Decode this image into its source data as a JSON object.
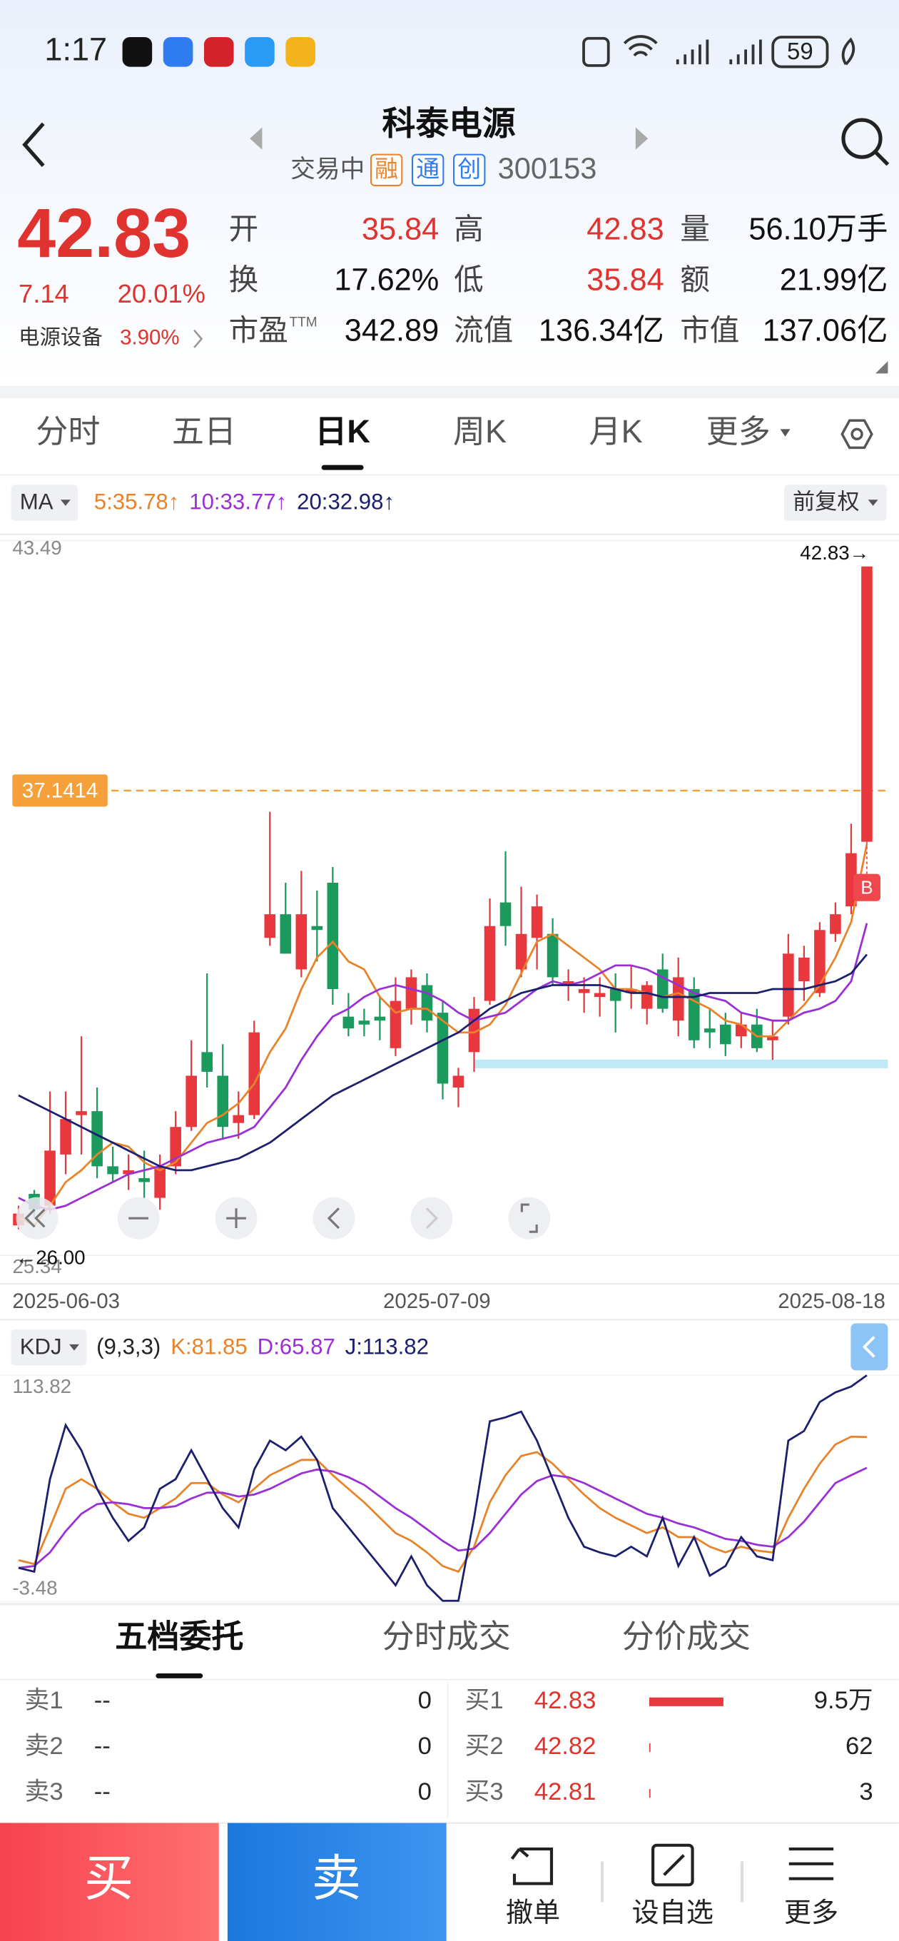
{
  "status_bar": {
    "time": "1:17",
    "battery": "59"
  },
  "header": {
    "title": "科泰电源",
    "status": "交易中",
    "badges": [
      "融",
      "通",
      "创"
    ],
    "code": "300153"
  },
  "quote": {
    "price": "42.83",
    "change": "7.14",
    "change_pct": "20.01%",
    "sector": "电源设备",
    "sector_pct": "3.90%",
    "fields": [
      {
        "label": "开",
        "value": "35.84",
        "color": "#e0332f"
      },
      {
        "label": "高",
        "value": "42.83",
        "color": "#e0332f"
      },
      {
        "label": "量",
        "value": "56.10万手",
        "color": "#111111"
      },
      {
        "label": "换",
        "value": "17.62%",
        "color": "#111111"
      },
      {
        "label": "低",
        "value": "35.84",
        "color": "#e0332f"
      },
      {
        "label": "额",
        "value": "21.99亿",
        "color": "#111111"
      },
      {
        "label": "市盈",
        "sup": "TTM",
        "value": "342.89",
        "color": "#111111"
      },
      {
        "label": "流值",
        "value": "136.34亿",
        "color": "#111111"
      },
      {
        "label": "市值",
        "value": "137.06亿",
        "color": "#111111"
      }
    ]
  },
  "tabs": [
    "分时",
    "五日",
    "日K",
    "周K",
    "月K",
    "更多"
  ],
  "active_tab": 2,
  "chart_data": [
    {
      "type": "candlestick",
      "indicator": "MA",
      "adjust": "前复权",
      "legend": [
        {
          "text": "5:35.78↑",
          "color": "#e8832a"
        },
        {
          "text": "10:33.77↑",
          "color": "#9b2fd6"
        },
        {
          "text": "20:32.98↑",
          "color": "#1b1f6e"
        }
      ],
      "categories": [
        "2025-06-03",
        null,
        null,
        null,
        null,
        null,
        null,
        null,
        null,
        null,
        null,
        null,
        null,
        null,
        null,
        null,
        null,
        null,
        null,
        null,
        null,
        null,
        null,
        null,
        null,
        null,
        "2025-07-09",
        null,
        null,
        null,
        null,
        null,
        null,
        null,
        null,
        null,
        null,
        null,
        null,
        null,
        null,
        null,
        null,
        null,
        null,
        null,
        null,
        null,
        null,
        null,
        null,
        null,
        null,
        null,
        "2025-08-18"
      ],
      "open": [
        26.1,
        26.9,
        26.6,
        27.9,
        28.9,
        29.0,
        27.6,
        27.4,
        27.3,
        26.8,
        27.6,
        28.6,
        30.5,
        29.9,
        28.7,
        28.9,
        33.4,
        34.0,
        32.6,
        33.7,
        34.8,
        31.4,
        31.3,
        31.4,
        30.6,
        31.6,
        32.2,
        31.5,
        29.6,
        30.5,
        31.8,
        34.3,
        32.6,
        33.4,
        33.5,
        32.2,
        32.0,
        31.9,
        32.1,
        32.0,
        31.6,
        32.6,
        31.3,
        32.1,
        31.1,
        31.2,
        30.9,
        31.2,
        30.8,
        31.4,
        32.3,
        32.0,
        33.5,
        34.2,
        35.84
      ],
      "high": [
        26.6,
        27.0,
        29.5,
        29.5,
        30.9,
        29.6,
        28.1,
        27.9,
        28.0,
        27.9,
        29.0,
        30.8,
        32.5,
        30.7,
        29.5,
        31.3,
        36.6,
        34.8,
        35.1,
        34.6,
        35.2,
        32.0,
        31.6,
        31.9,
        32.4,
        32.6,
        32.5,
        31.8,
        30.1,
        31.9,
        34.4,
        35.6,
        34.7,
        34.5,
        33.9,
        32.6,
        32.4,
        32.4,
        32.5,
        32.7,
        32.3,
        33.0,
        32.9,
        32.4,
        31.6,
        31.5,
        31.5,
        31.6,
        31.3,
        33.5,
        33.2,
        33.8,
        34.3,
        36.3,
        42.83
      ],
      "low": [
        26.0,
        26.3,
        26.4,
        27.4,
        27.9,
        27.3,
        27.2,
        27.0,
        26.8,
        26.5,
        27.4,
        28.5,
        29.6,
        28.3,
        28.3,
        28.8,
        33.2,
        33.0,
        32.4,
        32.8,
        31.7,
        30.9,
        30.9,
        30.8,
        30.4,
        31.2,
        31.0,
        29.3,
        29.1,
        30.0,
        31.7,
        33.2,
        32.4,
        32.6,
        32.2,
        31.8,
        31.5,
        31.4,
        31.0,
        31.6,
        31.2,
        31.5,
        30.9,
        30.6,
        30.6,
        30.4,
        30.6,
        30.5,
        30.3,
        31.2,
        31.8,
        31.9,
        33.3,
        34.0,
        35.84
      ],
      "close": [
        26.4,
        26.5,
        28.0,
        28.8,
        29.0,
        27.6,
        27.4,
        27.5,
        27.2,
        27.6,
        28.6,
        29.9,
        30.0,
        28.6,
        28.9,
        31.0,
        34.0,
        33.0,
        34.0,
        33.6,
        32.1,
        31.1,
        31.2,
        31.3,
        31.8,
        32.4,
        31.3,
        29.7,
        29.9,
        31.6,
        33.7,
        33.7,
        33.5,
        34.2,
        32.4,
        32.3,
        32.1,
        32.0,
        31.8,
        32.1,
        32.2,
        31.6,
        32.4,
        30.8,
        31.0,
        30.7,
        31.2,
        30.6,
        30.9,
        33.0,
        32.9,
        33.6,
        34.0,
        35.55,
        42.83
      ],
      "up_color": "#e8383d",
      "down_color": "#1a9a5c",
      "series": [
        {
          "color": "#e8832a",
          "values": [
            26.3,
            26.1,
            26.6,
            27.2,
            27.5,
            27.9,
            28.2,
            28.1,
            27.7,
            27.5,
            27.7,
            28.2,
            28.7,
            28.9,
            29.2,
            29.7,
            30.5,
            31.1,
            32.1,
            32.9,
            33.3,
            32.8,
            32.6,
            31.9,
            31.5,
            31.6,
            31.6,
            31.3,
            31.0,
            31.0,
            31.2,
            31.7,
            32.5,
            33.3,
            33.5,
            33.2,
            32.9,
            32.6,
            32.1,
            32.1,
            32.0,
            31.9,
            32.0,
            31.8,
            31.6,
            31.3,
            31.2,
            30.9,
            30.9,
            31.3,
            31.7,
            32.2,
            32.9,
            33.8,
            35.78
          ]
        },
        {
          "color": "#9b2fd6",
          "values": [
            26.8,
            26.6,
            26.5,
            26.6,
            26.8,
            27.0,
            27.2,
            27.4,
            27.5,
            27.6,
            27.8,
            28.0,
            28.2,
            28.3,
            28.4,
            28.6,
            29.1,
            29.6,
            30.3,
            30.9,
            31.4,
            31.6,
            31.9,
            32.1,
            32.2,
            32.1,
            32.0,
            31.8,
            31.5,
            31.3,
            31.4,
            31.5,
            31.8,
            32.1,
            32.3,
            32.2,
            32.3,
            32.5,
            32.7,
            32.7,
            32.6,
            32.4,
            32.2,
            32.0,
            31.9,
            31.8,
            31.5,
            31.4,
            31.3,
            31.3,
            31.5,
            31.6,
            31.8,
            32.3,
            33.77
          ]
        },
        {
          "color": "#1b1f6e",
          "values": [
            29.4,
            29.2,
            29.0,
            28.8,
            28.6,
            28.4,
            28.2,
            28.0,
            27.8,
            27.6,
            27.5,
            27.5,
            27.6,
            27.7,
            27.8,
            28.0,
            28.2,
            28.5,
            28.8,
            29.1,
            29.4,
            29.6,
            29.8,
            30.0,
            30.2,
            30.4,
            30.6,
            30.8,
            31.0,
            31.3,
            31.6,
            31.8,
            32.0,
            32.1,
            32.2,
            32.2,
            32.2,
            32.2,
            32.1,
            32.0,
            32.0,
            31.9,
            31.9,
            31.9,
            32.0,
            32.0,
            32.0,
            32.0,
            32.1,
            32.1,
            32.1,
            32.2,
            32.3,
            32.5,
            32.98
          ]
        }
      ],
      "ylim": [
        25.34,
        43.49
      ],
      "yticks": [
        43.49,
        25.34
      ],
      "reference": 37.1414,
      "reference_color": "#f5a03a",
      "max_label": "42.83→",
      "min_label": "←26.00",
      "drawings": [
        {
          "start": 29,
          "value": 30.2,
          "color": "#bfe9f7"
        }
      ],
      "trade_marks": [
        {
          "index": 54,
          "label": "B",
          "color": "#f0474c"
        }
      ]
    },
    {
      "type": "line",
      "indicator": "KDJ",
      "params": "(9,3,3)",
      "legend": [
        {
          "text": "K:81.85",
          "color": "#e8832a"
        },
        {
          "text": "D:65.87",
          "color": "#9b2fd6"
        },
        {
          "text": "J:113.82",
          "color": "#1b1f6e"
        }
      ],
      "series": [
        {
          "color": "#e8832a",
          "values": [
            18,
            16,
            35,
            55,
            60,
            55,
            48,
            42,
            40,
            45,
            50,
            58,
            58,
            52,
            48,
            55,
            62,
            66,
            70,
            70,
            62,
            55,
            48,
            40,
            32,
            28,
            22,
            15,
            12,
            25,
            48,
            62,
            72,
            74,
            68,
            60,
            52,
            45,
            40,
            36,
            32,
            35,
            30,
            30,
            25,
            22,
            25,
            23,
            22,
            40,
            55,
            68,
            78,
            82,
            81.85
          ]
        },
        {
          "color": "#9b2fd6",
          "values": [
            14,
            15,
            22,
            33,
            42,
            47,
            48,
            47,
            45,
            45,
            46,
            50,
            53,
            53,
            51,
            52,
            55,
            59,
            63,
            65,
            64,
            61,
            57,
            51,
            45,
            40,
            34,
            28,
            23,
            24,
            32,
            42,
            52,
            59,
            62,
            61,
            58,
            54,
            50,
            46,
            42,
            40,
            37,
            35,
            32,
            29,
            28,
            26,
            25,
            30,
            38,
            48,
            58,
            62,
            65.87
          ]
        },
        {
          "color": "#1b1f6e",
          "values": [
            14,
            12,
            60,
            88,
            75,
            55,
            40,
            28,
            35,
            55,
            60,
            75,
            60,
            45,
            35,
            65,
            80,
            75,
            82,
            70,
            45,
            35,
            25,
            15,
            5,
            20,
            5,
            -3,
            -3,
            40,
            90,
            92,
            95,
            80,
            60,
            40,
            25,
            22,
            20,
            25,
            20,
            40,
            15,
            30,
            10,
            15,
            30,
            20,
            18,
            80,
            85,
            100,
            105,
            108,
            113.82
          ]
        }
      ],
      "ylim": [
        -3.48,
        113.82
      ],
      "yticks": [
        113.82,
        -3.48
      ]
    }
  ],
  "order_book": {
    "tabs": [
      "五档委托",
      "分时成交",
      "分价成交"
    ],
    "sell": [
      {
        "level": "卖1",
        "price": "--",
        "volume": 0
      },
      {
        "level": "卖2",
        "price": "--",
        "volume": 0
      },
      {
        "level": "卖3",
        "price": "--",
        "volume": 0
      }
    ],
    "buy": [
      {
        "level": "买1",
        "price": 42.83,
        "volume": 95000,
        "volume_label": "9.5万"
      },
      {
        "level": "买2",
        "price": 42.82,
        "volume": 62
      },
      {
        "level": "买3",
        "price": 42.81,
        "volume": 3
      }
    ],
    "bar_color": "#e8383d"
  },
  "bottom_bar": {
    "buy": "买",
    "sell": "卖",
    "actions": [
      "撤单",
      "设自选",
      "更多"
    ]
  }
}
